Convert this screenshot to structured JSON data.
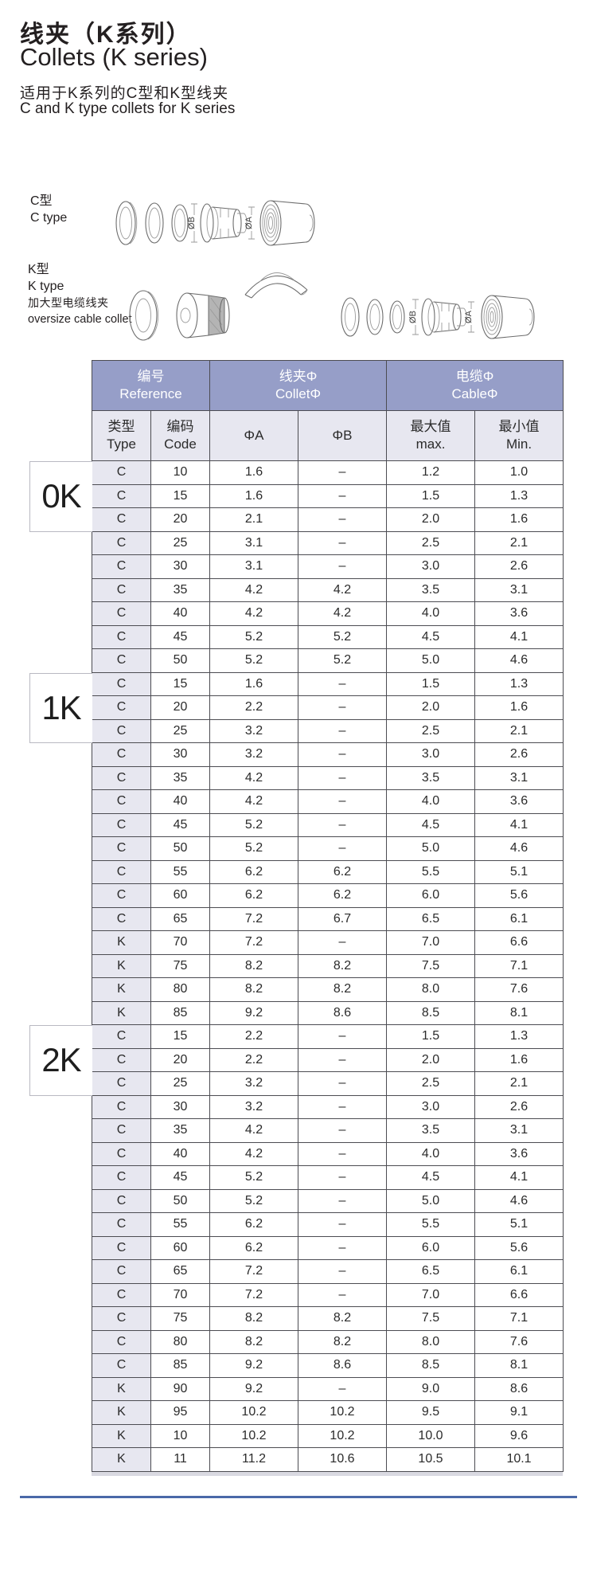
{
  "page": {
    "title_zh": "线夹（K系列）",
    "title_en": "Collets (K series)",
    "subtitle_zh": "适用于K系列的C型和K型线夹",
    "subtitle_en": "C and K type collets for K series"
  },
  "diagrams": {
    "c_type": {
      "label_zh": "C型",
      "label_en": "C type",
      "dim_b": "ØB",
      "dim_a": "ØA"
    },
    "k_type": {
      "label_zh": "K型",
      "label_en": "K type",
      "label_zh2": "加大型电缆线夹",
      "label_en2": "oversize cable collet",
      "dim_b": "ØB",
      "dim_a": "ØA"
    }
  },
  "table": {
    "header": {
      "reference_zh": "编号",
      "reference_en": "Reference",
      "collet_zh": "线夹Φ",
      "collet_en": "ColletΦ",
      "cable_zh": "电缆Φ",
      "cable_en": "CableΦ",
      "type_zh": "类型",
      "type_en": "Type",
      "code_zh": "编码",
      "code_en": "Code",
      "phi_a": "ΦA",
      "phi_b": "ΦB",
      "max_zh": "最大值",
      "max_en": "max.",
      "min_zh": "最小值",
      "min_en": "Min."
    },
    "groups": [
      {
        "name": "0K",
        "rows": [
          [
            "C",
            "10",
            "1.6",
            "–",
            "1.2",
            "1.0"
          ],
          [
            "C",
            "15",
            "1.6",
            "–",
            "1.5",
            "1.3"
          ],
          [
            "C",
            "20",
            "2.1",
            "–",
            "2.0",
            "1.6"
          ],
          [
            "C",
            "25",
            "3.1",
            "–",
            "2.5",
            "2.1"
          ],
          [
            "C",
            "30",
            "3.1",
            "–",
            "3.0",
            "2.6"
          ],
          [
            "C",
            "35",
            "4.2",
            "4.2",
            "3.5",
            "3.1"
          ],
          [
            "C",
            "40",
            "4.2",
            "4.2",
            "4.0",
            "3.6"
          ],
          [
            "C",
            "45",
            "5.2",
            "5.2",
            "4.5",
            "4.1"
          ],
          [
            "C",
            "50",
            "5.2",
            "5.2",
            "5.0",
            "4.6"
          ]
        ]
      },
      {
        "name": "1K",
        "rows": [
          [
            "C",
            "15",
            "1.6",
            "–",
            "1.5",
            "1.3"
          ],
          [
            "C",
            "20",
            "2.2",
            "–",
            "2.0",
            "1.6"
          ],
          [
            "C",
            "25",
            "3.2",
            "–",
            "2.5",
            "2.1"
          ],
          [
            "C",
            "30",
            "3.2",
            "–",
            "3.0",
            "2.6"
          ],
          [
            "C",
            "35",
            "4.2",
            "–",
            "3.5",
            "3.1"
          ],
          [
            "C",
            "40",
            "4.2",
            "–",
            "4.0",
            "3.6"
          ],
          [
            "C",
            "45",
            "5.2",
            "–",
            "4.5",
            "4.1"
          ],
          [
            "C",
            "50",
            "5.2",
            "–",
            "5.0",
            "4.6"
          ],
          [
            "C",
            "55",
            "6.2",
            "6.2",
            "5.5",
            "5.1"
          ],
          [
            "C",
            "60",
            "6.2",
            "6.2",
            "6.0",
            "5.6"
          ],
          [
            "C",
            "65",
            "7.2",
            "6.7",
            "6.5",
            "6.1"
          ],
          [
            "K",
            "70",
            "7.2",
            "–",
            "7.0",
            "6.6"
          ],
          [
            "K",
            "75",
            "8.2",
            "8.2",
            "7.5",
            "7.1"
          ],
          [
            "K",
            "80",
            "8.2",
            "8.2",
            "8.0",
            "7.6"
          ],
          [
            "K",
            "85",
            "9.2",
            "8.6",
            "8.5",
            "8.1"
          ]
        ]
      },
      {
        "name": "2K",
        "rows": [
          [
            "C",
            "15",
            "2.2",
            "–",
            "1.5",
            "1.3"
          ],
          [
            "C",
            "20",
            "2.2",
            "–",
            "2.0",
            "1.6"
          ],
          [
            "C",
            "25",
            "3.2",
            "–",
            "2.5",
            "2.1"
          ],
          [
            "C",
            "30",
            "3.2",
            "–",
            "3.0",
            "2.6"
          ],
          [
            "C",
            "35",
            "4.2",
            "–",
            "3.5",
            "3.1"
          ],
          [
            "C",
            "40",
            "4.2",
            "–",
            "4.0",
            "3.6"
          ],
          [
            "C",
            "45",
            "5.2",
            "–",
            "4.5",
            "4.1"
          ],
          [
            "C",
            "50",
            "5.2",
            "–",
            "5.0",
            "4.6"
          ],
          [
            "C",
            "55",
            "6.2",
            "–",
            "5.5",
            "5.1"
          ],
          [
            "C",
            "60",
            "6.2",
            "–",
            "6.0",
            "5.6"
          ],
          [
            "C",
            "65",
            "7.2",
            "–",
            "6.5",
            "6.1"
          ],
          [
            "C",
            "70",
            "7.2",
            "–",
            "7.0",
            "6.6"
          ],
          [
            "C",
            "75",
            "8.2",
            "8.2",
            "7.5",
            "7.1"
          ],
          [
            "C",
            "80",
            "8.2",
            "8.2",
            "8.0",
            "7.6"
          ],
          [
            "C",
            "85",
            "9.2",
            "8.6",
            "8.5",
            "8.1"
          ],
          [
            "K",
            "90",
            "9.2",
            "–",
            "9.0",
            "8.6"
          ],
          [
            "K",
            "95",
            "10.2",
            "10.2",
            "9.5",
            "9.1"
          ],
          [
            "K",
            "10",
            "10.2",
            "10.2",
            "10.0",
            "9.6"
          ],
          [
            "K",
            "11",
            "11.2",
            "10.6",
            "10.5",
            "10.1"
          ]
        ]
      }
    ]
  },
  "colors": {
    "header_bg": "#969ec8",
    "subheader_bg": "#e7e7f0",
    "bottom_line": "#4a69a8"
  }
}
